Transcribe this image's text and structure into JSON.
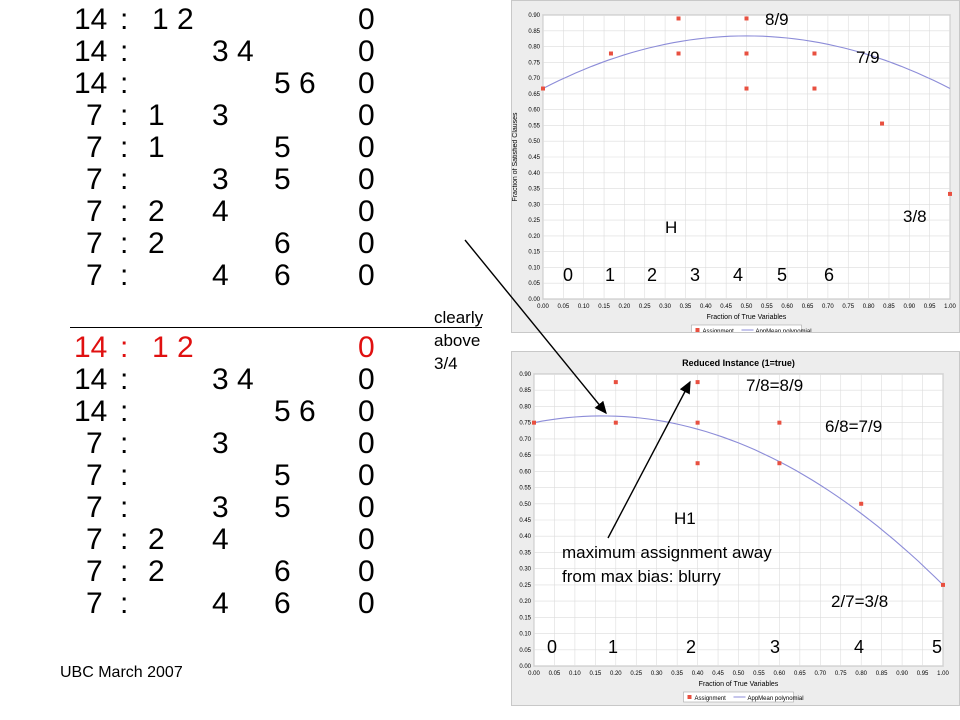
{
  "rows_top": [
    {
      "w": "14",
      "c": ":",
      "a": "1 2",
      "b": "",
      "d": "",
      "z": "0"
    },
    {
      "w": "14",
      "c": ":",
      "a": "",
      "b": "3 4",
      "d": "",
      "z": "0"
    },
    {
      "w": "14",
      "c": ":",
      "a": "",
      "b": "",
      "d": "5 6",
      "z": "0"
    },
    {
      "w": "7",
      "c": ":",
      "a": "1",
      "b": "3",
      "d": "",
      "z": "0"
    },
    {
      "w": "7",
      "c": ":",
      "a": "1",
      "b": "",
      "d": "5",
      "z": "0"
    },
    {
      "w": "7",
      "c": ":",
      "a": "",
      "b": "3",
      "d": "5",
      "z": "0"
    },
    {
      "w": "7",
      "c": ":",
      "a": "2",
      "b": "4",
      "d": "",
      "z": "0"
    },
    {
      "w": "7",
      "c": ":",
      "a": "2",
      "b": "",
      "d": "6",
      "z": "0"
    },
    {
      "w": "7",
      "c": ":",
      "a": "",
      "b": "4",
      "d": "6",
      "z": "0"
    }
  ],
  "rows_bottom": [
    {
      "w": "14",
      "c": ":",
      "a": "1 2",
      "b": "",
      "d": "",
      "z": "0"
    },
    {
      "w": "14",
      "c": ":",
      "a": "",
      "b": "3 4",
      "d": "",
      "z": "0"
    },
    {
      "w": "14",
      "c": ":",
      "a": "",
      "b": "",
      "d": "5 6",
      "z": "0"
    },
    {
      "w": "7",
      "c": ":",
      "a": "",
      "b": "3",
      "d": "",
      "z": "0"
    },
    {
      "w": "7",
      "c": ":",
      "a": "",
      "b": "",
      "d": "5",
      "z": "0"
    },
    {
      "w": "7",
      "c": ":",
      "a": "",
      "b": "3",
      "d": "5",
      "z": "0"
    },
    {
      "w": "7",
      "c": ":",
      "a": "2",
      "b": "4",
      "d": "",
      "z": "0"
    },
    {
      "w": "7",
      "c": ":",
      "a": "2",
      "b": "",
      "d": "6",
      "z": "0"
    },
    {
      "w": "7",
      "c": ":",
      "a": "",
      "b": "4",
      "d": "6",
      "z": "0"
    }
  ],
  "highlight_color": "#e01010",
  "note_clearly": "clearly\nabove\n3/4",
  "footer": "UBC March 2007",
  "chart_data": [
    {
      "type": "scatter",
      "title": "",
      "xlabel": "Fraction of True Variables",
      "ylabel": "Fraction of Satisfied Clauses",
      "xlim": [
        0.0,
        1.0
      ],
      "ylim": [
        0.0,
        0.9
      ],
      "x_ticks": [
        "0.00",
        "0.05",
        "0.10",
        "0.15",
        "0.20",
        "0.25",
        "0.30",
        "0.35",
        "0.40",
        "0.45",
        "0.50",
        "0.55",
        "0.60",
        "0.65",
        "0.70",
        "0.75",
        "0.80",
        "0.85",
        "0.90",
        "0.95",
        "1.00"
      ],
      "y_ticks": [
        "0.00",
        "0.05",
        "0.10",
        "0.15",
        "0.20",
        "0.25",
        "0.30",
        "0.35",
        "0.40",
        "0.45",
        "0.50",
        "0.55",
        "0.60",
        "0.65",
        "0.70",
        "0.75",
        "0.80",
        "0.85",
        "0.90"
      ],
      "legend": [
        "Assignment",
        "AppMean polynomial"
      ],
      "points": [
        {
          "x": 0.0,
          "y": 0.667
        },
        {
          "x": 0.167,
          "y": 0.778
        },
        {
          "x": 0.333,
          "y": 0.889
        },
        {
          "x": 0.333,
          "y": 0.778
        },
        {
          "x": 0.5,
          "y": 0.889
        },
        {
          "x": 0.5,
          "y": 0.778
        },
        {
          "x": 0.5,
          "y": 0.667
        },
        {
          "x": 0.667,
          "y": 0.778
        },
        {
          "x": 0.667,
          "y": 0.667
        },
        {
          "x": 0.833,
          "y": 0.556
        },
        {
          "x": 1.0,
          "y": 0.333
        }
      ],
      "poly": [
        0.667,
        0.667,
        -0.667
      ],
      "marker_color": "#e85040",
      "line_color": "#8c8cd8",
      "overlay_labels": {
        "n0": "0",
        "n1": "1",
        "n2": "2",
        "n3": "3",
        "n4": "4",
        "n5": "5",
        "n6": "6",
        "H": "H",
        "f89": "8/9",
        "f79": "7/9",
        "f38": "3/8"
      }
    },
    {
      "type": "scatter",
      "title": "Reduced Instance (1=true)",
      "xlabel": "Fraction of True Variables",
      "ylabel": "Fraction of Satisfied Clauses",
      "xlim": [
        0.0,
        1.0
      ],
      "ylim": [
        0.0,
        0.9
      ],
      "x_ticks": [
        "0.00",
        "0.05",
        "0.10",
        "0.15",
        "0.20",
        "0.25",
        "0.30",
        "0.35",
        "0.40",
        "0.45",
        "0.50",
        "0.55",
        "0.60",
        "0.65",
        "0.70",
        "0.75",
        "0.80",
        "0.85",
        "0.90",
        "0.95",
        "1.00"
      ],
      "y_ticks": [
        "0.00",
        "0.05",
        "0.10",
        "0.15",
        "0.20",
        "0.25",
        "0.30",
        "0.35",
        "0.40",
        "0.45",
        "0.50",
        "0.55",
        "0.60",
        "0.65",
        "0.70",
        "0.75",
        "0.80",
        "0.85",
        "0.90"
      ],
      "legend": [
        "Assignment",
        "AppMean polynomial"
      ],
      "points": [
        {
          "x": 0.0,
          "y": 0.75
        },
        {
          "x": 0.2,
          "y": 0.875
        },
        {
          "x": 0.2,
          "y": 0.75
        },
        {
          "x": 0.4,
          "y": 0.875
        },
        {
          "x": 0.4,
          "y": 0.75
        },
        {
          "x": 0.4,
          "y": 0.625
        },
        {
          "x": 0.6,
          "y": 0.75
        },
        {
          "x": 0.6,
          "y": 0.625
        },
        {
          "x": 0.8,
          "y": 0.5
        },
        {
          "x": 1.0,
          "y": 0.25
        }
      ],
      "poly": [
        0.75,
        0.25,
        -0.75
      ],
      "marker_color": "#e85040",
      "line_color": "#8c8cd8",
      "overlay_labels": {
        "n0": "0",
        "n1": "1",
        "n2": "2",
        "n3": "3",
        "n4": "4",
        "n5": "5",
        "H1": "H1",
        "f78": "7/8=8/9",
        "f68": "6/8=7/9",
        "f27": "2/7=3/8"
      }
    }
  ],
  "note_max1": "maximum assignment away",
  "note_max2": "from max bias: blurry"
}
